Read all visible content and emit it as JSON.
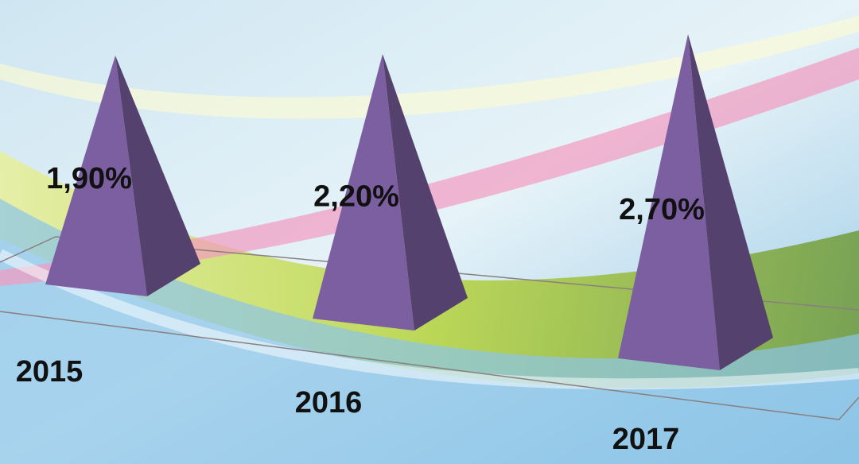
{
  "chart_data": {
    "type": "pyramid3d",
    "categories": [
      "2015",
      "2016",
      "2017"
    ],
    "values": [
      1.9,
      2.2,
      2.7
    ],
    "value_labels": [
      "1,90%",
      "2,20%",
      "2,70%"
    ],
    "color": "#7b5fa0"
  }
}
